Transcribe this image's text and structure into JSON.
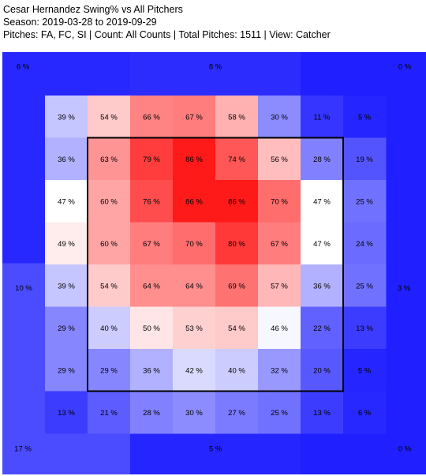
{
  "header": {
    "title": "Cesar Hernandez Swing% vs All Pitchers",
    "season": "Season: 2019-03-28 to 2019-09-29",
    "filters": "Pitches: FA, FC, SI | Count: All Counts | Total Pitches: 1511 | View: Catcher"
  },
  "chart_data": {
    "type": "heatmap",
    "title": "Cesar Hernandez Swing% vs All Pitchers",
    "metric": "Swing%",
    "unit": "%",
    "color_scale": {
      "low": "#1f1fff",
      "mid": "#ffffff",
      "high": "#ff1a1a",
      "low_value": 0,
      "mid_value": 47,
      "high_value": 86
    },
    "outer_zones": [
      {
        "zone": "top-left",
        "value": 6
      },
      {
        "zone": "top-center",
        "value": 8
      },
      {
        "zone": "top-right",
        "value": 0
      },
      {
        "zone": "middle-left",
        "value": 10
      },
      {
        "zone": "middle-right",
        "value": 3
      },
      {
        "zone": "bottom-left",
        "value": 17
      },
      {
        "zone": "bottom-center",
        "value": 5
      },
      {
        "zone": "bottom-right",
        "value": 0
      }
    ],
    "grid": [
      [
        39,
        54,
        66,
        67,
        58,
        30,
        11,
        5
      ],
      [
        36,
        63,
        79,
        86,
        74,
        56,
        28,
        19
      ],
      [
        47,
        60,
        76,
        86,
        86,
        70,
        47,
        25
      ],
      [
        49,
        60,
        67,
        70,
        80,
        67,
        47,
        24
      ],
      [
        39,
        54,
        64,
        64,
        69,
        57,
        36,
        25
      ],
      [
        29,
        40,
        50,
        53,
        54,
        46,
        22,
        13
      ],
      [
        29,
        29,
        36,
        42,
        40,
        32,
        20,
        5
      ],
      [
        13,
        21,
        28,
        30,
        27,
        25,
        13,
        6
      ]
    ],
    "strike_zone": {
      "rows": [
        1,
        6
      ],
      "cols": [
        1,
        6
      ]
    },
    "view": "Catcher"
  }
}
